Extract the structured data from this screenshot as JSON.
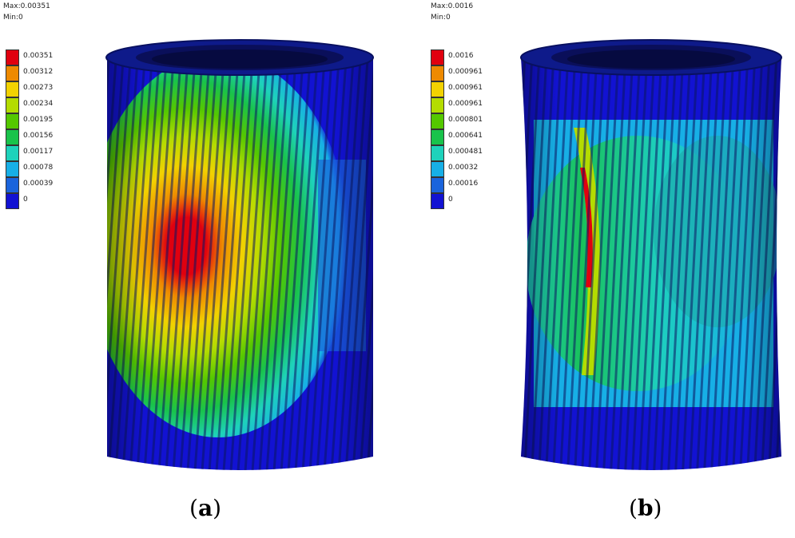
{
  "panels": [
    {
      "id": "a",
      "max_label": "Max:0.00351",
      "min_label": "Min:0",
      "legend": [
        {
          "label": "0.00351",
          "color": "#e0000f"
        },
        {
          "label": "0.00312",
          "color": "#ee8a00"
        },
        {
          "label": "0.00273",
          "color": "#f2d200"
        },
        {
          "label": "0.00234",
          "color": "#b4dc00"
        },
        {
          "label": "0.00195",
          "color": "#54c800"
        },
        {
          "label": "0.00156",
          "color": "#19c34b"
        },
        {
          "label": "0.00117",
          "color": "#1ed2bb"
        },
        {
          "label": "0.00078",
          "color": "#17afe6"
        },
        {
          "label": "0.00039",
          "color": "#1a64dc"
        },
        {
          "label": "0",
          "color": "#1212d2"
        }
      ],
      "caption_letter": "a"
    },
    {
      "id": "b",
      "max_label": "Max:0.0016",
      "min_label": "Min:0",
      "legend": [
        {
          "label": "0.0016",
          "color": "#e0000f"
        },
        {
          "label": "0.000961",
          "color": "#ee8a00"
        },
        {
          "label": "0.000961",
          "color": "#f2d200"
        },
        {
          "label": "0.000961",
          "color": "#b4dc00"
        },
        {
          "label": "0.000801",
          "color": "#54c800"
        },
        {
          "label": "0.000641",
          "color": "#19c34b"
        },
        {
          "label": "0.000481",
          "color": "#1ed2bb"
        },
        {
          "label": "0.00032",
          "color": "#17afe6"
        },
        {
          "label": "0.00016",
          "color": "#1a64dc"
        },
        {
          "label": "0",
          "color": "#1212d2"
        }
      ],
      "caption_letter": "b"
    }
  ]
}
